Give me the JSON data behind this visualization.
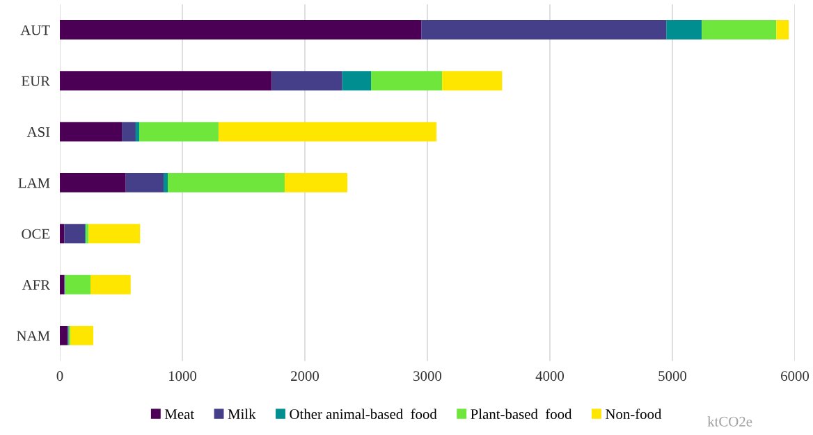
{
  "chart_data": {
    "type": "bar",
    "orientation": "horizontal",
    "stacked": true,
    "categories": [
      "AUT",
      "EUR",
      "ASI",
      "LAM",
      "OCE",
      "AFR",
      "NAM"
    ],
    "series": [
      {
        "name": "Meat",
        "color": "#4b0055",
        "values": [
          2950,
          1730,
          506,
          538,
          36,
          36,
          61
        ]
      },
      {
        "name": "Milk",
        "color": "#453f8a",
        "values": [
          2000,
          575,
          113,
          309,
          169,
          5,
          9
        ]
      },
      {
        "name": "Other animal-based  food",
        "color": "#008e90",
        "values": [
          290,
          235,
          29,
          34,
          7,
          2,
          3
        ]
      },
      {
        "name": "Plant-based  food",
        "color": "#6ee63c",
        "values": [
          608,
          580,
          647,
          954,
          23,
          207,
          12
        ]
      },
      {
        "name": "Non-food",
        "color": "#ffe600",
        "values": [
          102,
          490,
          1779,
          512,
          420,
          328,
          188
        ]
      }
    ],
    "xlabel": "ktCO2e",
    "xlim": [
      0,
      6000
    ],
    "xticks": [
      0,
      1000,
      2000,
      3000,
      4000,
      5000,
      6000
    ],
    "grid": "x",
    "legend": "bottom"
  }
}
